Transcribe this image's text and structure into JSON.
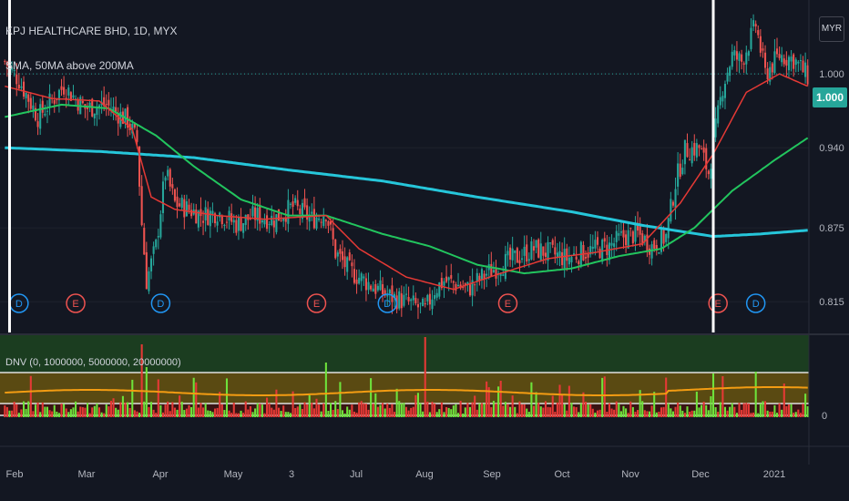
{
  "header": {
    "title": "KPJ HEALTHCARE BHD, 1D, MYX",
    "study": "SMA, 50MA above 200MA",
    "volume_study": "DNV (0, 1000000, 5000000, 20000000)"
  },
  "currency_button": "MYR",
  "price_badge": "1.000",
  "colors": {
    "background": "#131722",
    "up": "#26a69a",
    "down": "#ef5350",
    "sma_fast": "#e53935",
    "sma_mid": "#22c55e",
    "sma_slow": "#26c6da",
    "vol_zone_top": "#1b3d20",
    "vol_zone_mid": "#5a4a12",
    "vol_zone_low": "#3a1414",
    "vol_ma": "#f39c12",
    "marker_earnings": "#ef5350",
    "marker_dividend": "#2196f3"
  },
  "chart_data": {
    "type": "candlestick",
    "title": "KPJ HEALTHCARE BHD, 1D, MYX",
    "currency": "MYR",
    "y_ticks": [
      "0.815",
      "0.875",
      "0.940",
      "1.000"
    ],
    "ylim": [
      0.79,
      1.06
    ],
    "x_ticks": [
      "Feb",
      "Mar",
      "Apr",
      "May",
      "3",
      "Jul",
      "Aug",
      "Sep",
      "Oct",
      "Nov",
      "Dec",
      "2021"
    ],
    "last_price": 1.0,
    "price_path": [
      [
        0,
        1.01
      ],
      [
        6,
        0.995
      ],
      [
        14,
        0.965
      ],
      [
        25,
        0.99
      ],
      [
        34,
        0.972
      ],
      [
        43,
        0.975
      ],
      [
        52,
        0.962
      ],
      [
        56,
        0.945
      ],
      [
        58,
        0.878
      ],
      [
        60,
        0.832
      ],
      [
        64,
        0.86
      ],
      [
        68,
        0.92
      ],
      [
        72,
        0.895
      ],
      [
        78,
        0.89
      ],
      [
        84,
        0.885
      ],
      [
        90,
        0.888
      ],
      [
        98,
        0.878
      ],
      [
        106,
        0.885
      ],
      [
        114,
        0.882
      ],
      [
        122,
        0.892
      ],
      [
        130,
        0.882
      ],
      [
        136,
        0.888
      ],
      [
        140,
        0.855
      ],
      [
        146,
        0.84
      ],
      [
        154,
        0.83
      ],
      [
        162,
        0.82
      ],
      [
        170,
        0.815
      ],
      [
        178,
        0.808
      ],
      [
        182,
        0.825
      ],
      [
        186,
        0.832
      ],
      [
        190,
        0.83
      ],
      [
        196,
        0.825
      ],
      [
        204,
        0.838
      ],
      [
        210,
        0.845
      ],
      [
        218,
        0.852
      ],
      [
        224,
        0.858
      ],
      [
        230,
        0.855
      ],
      [
        238,
        0.85
      ],
      [
        244,
        0.855
      ],
      [
        252,
        0.858
      ],
      [
        256,
        0.86
      ],
      [
        262,
        0.868
      ],
      [
        268,
        0.87
      ],
      [
        274,
        0.86
      ],
      [
        280,
        0.868
      ],
      [
        284,
        0.912
      ],
      [
        288,
        0.938
      ],
      [
        294,
        0.94
      ],
      [
        298,
        0.92
      ],
      [
        304,
        0.99
      ],
      [
        308,
        1.015
      ],
      [
        312,
        1.01
      ],
      [
        318,
        1.04
      ],
      [
        322,
        1.0
      ],
      [
        328,
        1.015
      ],
      [
        334,
        1.012
      ],
      [
        340,
        0.998
      ]
    ],
    "bars_total": 341,
    "sma_fast": [
      [
        0,
        0.99
      ],
      [
        20,
        0.98
      ],
      [
        40,
        0.978
      ],
      [
        54,
        0.955
      ],
      [
        62,
        0.9
      ],
      [
        72,
        0.89
      ],
      [
        90,
        0.885
      ],
      [
        110,
        0.882
      ],
      [
        136,
        0.885
      ],
      [
        150,
        0.858
      ],
      [
        170,
        0.835
      ],
      [
        190,
        0.825
      ],
      [
        210,
        0.838
      ],
      [
        230,
        0.85
      ],
      [
        250,
        0.855
      ],
      [
        270,
        0.862
      ],
      [
        286,
        0.895
      ],
      [
        300,
        0.935
      ],
      [
        314,
        0.985
      ],
      [
        328,
        1.0
      ],
      [
        340,
        0.99
      ]
    ],
    "sma_mid": [
      [
        0,
        0.965
      ],
      [
        24,
        0.975
      ],
      [
        44,
        0.972
      ],
      [
        64,
        0.95
      ],
      [
        80,
        0.925
      ],
      [
        100,
        0.898
      ],
      [
        120,
        0.885
      ],
      [
        136,
        0.885
      ],
      [
        160,
        0.87
      ],
      [
        180,
        0.86
      ],
      [
        200,
        0.845
      ],
      [
        220,
        0.838
      ],
      [
        240,
        0.842
      ],
      [
        260,
        0.852
      ],
      [
        278,
        0.858
      ],
      [
        292,
        0.875
      ],
      [
        308,
        0.905
      ],
      [
        326,
        0.93
      ],
      [
        340,
        0.948
      ]
    ],
    "sma_slow": [
      [
        0,
        0.94
      ],
      [
        40,
        0.937
      ],
      [
        80,
        0.932
      ],
      [
        120,
        0.922
      ],
      [
        160,
        0.913
      ],
      [
        200,
        0.9
      ],
      [
        240,
        0.888
      ],
      [
        270,
        0.877
      ],
      [
        300,
        0.868
      ],
      [
        320,
        0.87
      ],
      [
        340,
        0.873
      ]
    ],
    "earnings_markers": [
      30,
      132,
      213,
      302
    ],
    "dividend_markers": [
      6,
      66,
      162,
      318
    ],
    "highlight_bar_lines": [
      2,
      300
    ],
    "volume": {
      "zero_label": "0",
      "thresholds": [
        0,
        1000000,
        5000000,
        20000000
      ]
    }
  }
}
